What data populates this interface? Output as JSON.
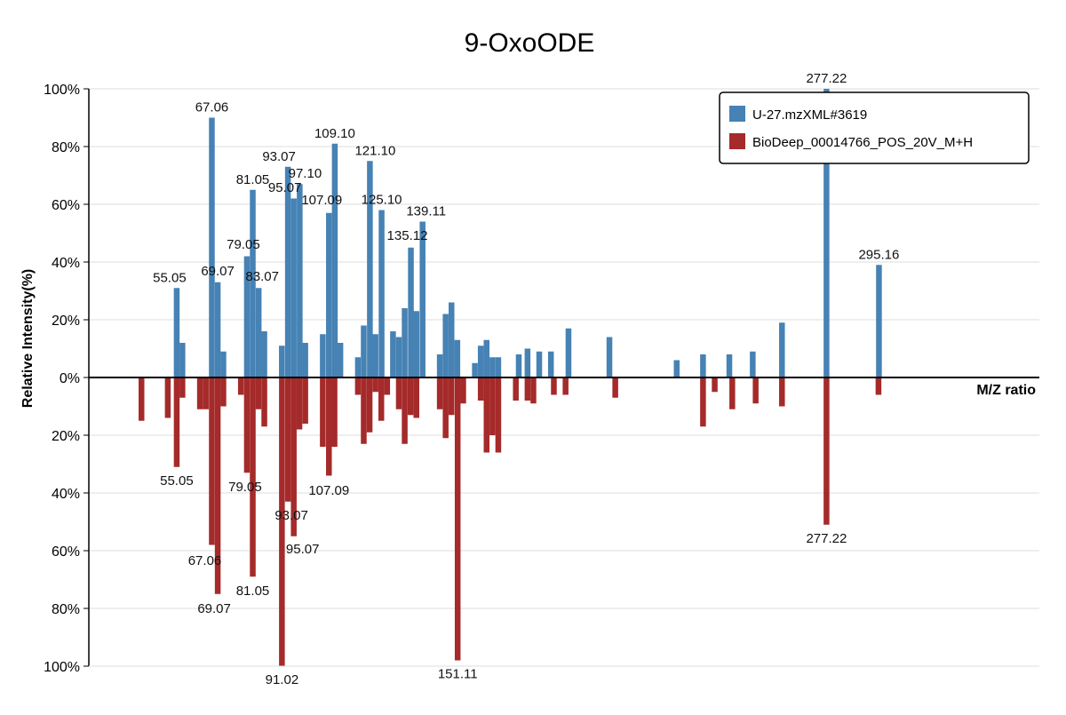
{
  "chart_data": {
    "type": "bar",
    "title": "9-OxoODE",
    "xlabel": "M/Z ratio",
    "ylabel": "Relative Intensity(%)",
    "ylim": [
      -100,
      100
    ],
    "xlim": [
      25,
      350
    ],
    "y_ticks": [
      {
        "value": 100,
        "label": "100%"
      },
      {
        "value": 80,
        "label": "80%"
      },
      {
        "value": 60,
        "label": "60%"
      },
      {
        "value": 40,
        "label": "40%"
      },
      {
        "value": 20,
        "label": "20%"
      },
      {
        "value": 0,
        "label": "0%"
      },
      {
        "value": -20,
        "label": "20%"
      },
      {
        "value": -40,
        "label": "40%"
      },
      {
        "value": -60,
        "label": "60%"
      },
      {
        "value": -80,
        "label": "80%"
      },
      {
        "value": -100,
        "label": "100%"
      }
    ],
    "grid": true,
    "legend_position": "top-right",
    "series": [
      {
        "name": "U-27.mzXML#3619",
        "color": "#4682b4",
        "points": [
          {
            "mz": 55.05,
            "intensity": 31,
            "label": "55.05"
          },
          {
            "mz": 57.0,
            "intensity": 12
          },
          {
            "mz": 67.06,
            "intensity": 90,
            "label": "67.06"
          },
          {
            "mz": 69.07,
            "intensity": 33,
            "label": "69.07"
          },
          {
            "mz": 71.0,
            "intensity": 9
          },
          {
            "mz": 79.05,
            "intensity": 42,
            "label": "79.05"
          },
          {
            "mz": 81.05,
            "intensity": 65,
            "label": "81.05"
          },
          {
            "mz": 83.07,
            "intensity": 31,
            "label": "83.07"
          },
          {
            "mz": 85.0,
            "intensity": 16
          },
          {
            "mz": 91.0,
            "intensity": 11
          },
          {
            "mz": 93.07,
            "intensity": 73,
            "label": "93.07"
          },
          {
            "mz": 95.07,
            "intensity": 62,
            "label": "95.07"
          },
          {
            "mz": 97.1,
            "intensity": 67,
            "label": "97.10"
          },
          {
            "mz": 99.0,
            "intensity": 12
          },
          {
            "mz": 105.0,
            "intensity": 15
          },
          {
            "mz": 107.09,
            "intensity": 57,
            "label": "107.09"
          },
          {
            "mz": 109.1,
            "intensity": 81,
            "label": "109.10"
          },
          {
            "mz": 111.0,
            "intensity": 12
          },
          {
            "mz": 117.0,
            "intensity": 7
          },
          {
            "mz": 119.0,
            "intensity": 18
          },
          {
            "mz": 121.1,
            "intensity": 75,
            "label": "121.10"
          },
          {
            "mz": 123.0,
            "intensity": 15
          },
          {
            "mz": 125.1,
            "intensity": 58,
            "label": "125.10"
          },
          {
            "mz": 129.0,
            "intensity": 16
          },
          {
            "mz": 131.0,
            "intensity": 14
          },
          {
            "mz": 133.0,
            "intensity": 24
          },
          {
            "mz": 135.12,
            "intensity": 45,
            "label": "135.12"
          },
          {
            "mz": 137.0,
            "intensity": 23
          },
          {
            "mz": 139.11,
            "intensity": 54,
            "label": "139.11"
          },
          {
            "mz": 145.0,
            "intensity": 8
          },
          {
            "mz": 147.0,
            "intensity": 22
          },
          {
            "mz": 149.0,
            "intensity": 26
          },
          {
            "mz": 151.0,
            "intensity": 13
          },
          {
            "mz": 157.0,
            "intensity": 5
          },
          {
            "mz": 159.0,
            "intensity": 11
          },
          {
            "mz": 161.0,
            "intensity": 13
          },
          {
            "mz": 163.0,
            "intensity": 7
          },
          {
            "mz": 165.0,
            "intensity": 7
          },
          {
            "mz": 172.0,
            "intensity": 8
          },
          {
            "mz": 175.0,
            "intensity": 10
          },
          {
            "mz": 179.0,
            "intensity": 9
          },
          {
            "mz": 183.0,
            "intensity": 9
          },
          {
            "mz": 189.0,
            "intensity": 17
          },
          {
            "mz": 203.0,
            "intensity": 14
          },
          {
            "mz": 226.0,
            "intensity": 6
          },
          {
            "mz": 235.0,
            "intensity": 8
          },
          {
            "mz": 244.0,
            "intensity": 8
          },
          {
            "mz": 252.0,
            "intensity": 9
          },
          {
            "mz": 262.0,
            "intensity": 19
          },
          {
            "mz": 277.22,
            "intensity": 100,
            "label": "277.22"
          },
          {
            "mz": 295.16,
            "intensity": 39,
            "label": "295.16"
          }
        ]
      },
      {
        "name": "BioDeep_00014766_POS_20V_M+H",
        "color": "#a52a2a",
        "points": [
          {
            "mz": 43.0,
            "intensity": 15
          },
          {
            "mz": 52.0,
            "intensity": 14
          },
          {
            "mz": 55.05,
            "intensity": 31,
            "label": "55.05"
          },
          {
            "mz": 57.0,
            "intensity": 7
          },
          {
            "mz": 63.0,
            "intensity": 11
          },
          {
            "mz": 65.0,
            "intensity": 11
          },
          {
            "mz": 67.06,
            "intensity": 58,
            "label": "67.06"
          },
          {
            "mz": 69.07,
            "intensity": 75,
            "label": "69.07"
          },
          {
            "mz": 71.0,
            "intensity": 10
          },
          {
            "mz": 77.0,
            "intensity": 6
          },
          {
            "mz": 79.05,
            "intensity": 33,
            "label": "79.05"
          },
          {
            "mz": 81.05,
            "intensity": 69,
            "label": "81.05"
          },
          {
            "mz": 83.0,
            "intensity": 11
          },
          {
            "mz": 85.0,
            "intensity": 17
          },
          {
            "mz": 91.02,
            "intensity": 100,
            "label": "91.02"
          },
          {
            "mz": 93.07,
            "intensity": 43,
            "label": "93.07"
          },
          {
            "mz": 95.07,
            "intensity": 55,
            "label": "95.07"
          },
          {
            "mz": 97.0,
            "intensity": 18
          },
          {
            "mz": 99.0,
            "intensity": 16
          },
          {
            "mz": 105.0,
            "intensity": 24
          },
          {
            "mz": 107.09,
            "intensity": 34,
            "label": "107.09"
          },
          {
            "mz": 109.0,
            "intensity": 24
          },
          {
            "mz": 117.0,
            "intensity": 6
          },
          {
            "mz": 119.0,
            "intensity": 23
          },
          {
            "mz": 121.0,
            "intensity": 19
          },
          {
            "mz": 123.0,
            "intensity": 5
          },
          {
            "mz": 125.0,
            "intensity": 15
          },
          {
            "mz": 127.0,
            "intensity": 6
          },
          {
            "mz": 131.0,
            "intensity": 11
          },
          {
            "mz": 133.0,
            "intensity": 23
          },
          {
            "mz": 135.0,
            "intensity": 13
          },
          {
            "mz": 137.0,
            "intensity": 14
          },
          {
            "mz": 145.0,
            "intensity": 11
          },
          {
            "mz": 147.0,
            "intensity": 21
          },
          {
            "mz": 149.0,
            "intensity": 13
          },
          {
            "mz": 151.11,
            "intensity": 98,
            "label": "151.11"
          },
          {
            "mz": 153.0,
            "intensity": 9
          },
          {
            "mz": 159.0,
            "intensity": 8
          },
          {
            "mz": 161.0,
            "intensity": 26
          },
          {
            "mz": 163.0,
            "intensity": 20
          },
          {
            "mz": 165.0,
            "intensity": 26
          },
          {
            "mz": 171.0,
            "intensity": 8
          },
          {
            "mz": 175.0,
            "intensity": 8
          },
          {
            "mz": 177.0,
            "intensity": 9
          },
          {
            "mz": 184.0,
            "intensity": 6
          },
          {
            "mz": 188.0,
            "intensity": 6
          },
          {
            "mz": 205.0,
            "intensity": 7
          },
          {
            "mz": 235.0,
            "intensity": 17
          },
          {
            "mz": 239.0,
            "intensity": 5
          },
          {
            "mz": 245.0,
            "intensity": 11
          },
          {
            "mz": 253.0,
            "intensity": 9
          },
          {
            "mz": 262.0,
            "intensity": 10
          },
          {
            "mz": 277.22,
            "intensity": 51,
            "label": "277.22"
          },
          {
            "mz": 295.0,
            "intensity": 6
          }
        ]
      }
    ]
  }
}
